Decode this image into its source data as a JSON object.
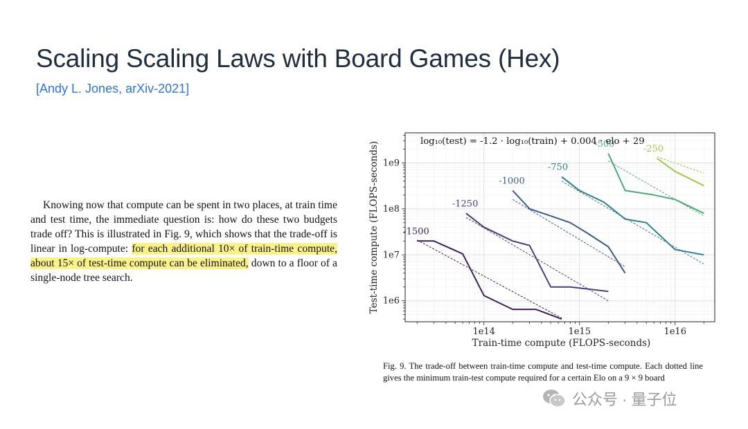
{
  "slide": {
    "title": "Scaling Scaling Laws with Board Games (Hex)",
    "subtitle": "[Andy L. Jones, arXiv-2021]"
  },
  "body": {
    "before": "Knowing now that compute can be spent in two places, at train time and test time, the immediate question is: how do these two budgets trade off? This is illustrated in Fig. 9, which shows that the trade-off is linear in log-compute: ",
    "highlight": "for each additional 10× of train-time compute, about 15× of test-time compute can be eliminated,",
    "after": " down to a floor of a single-node tree search."
  },
  "caption": "Fig. 9.  The trade-off between train-time compute and test-time compute. Each dotted line gives the minimum train-test compute required for a certain Elo on a 9 × 9 board",
  "watermark": {
    "text": "公众号 · 量子位",
    "icon": "wechat-icon"
  },
  "chart_data": {
    "type": "line",
    "log_x": true,
    "log_y": true,
    "xlabel": "Train-time compute (FLOPS-seconds)",
    "ylabel": "Test-time compute (FLOPS-seconds)",
    "xlim": [
      15000000000000.0,
      2.6e+16
    ],
    "ylim": [
      350000.0,
      4500000000.0
    ],
    "x_ticks": [
      100000000000000.0,
      1000000000000000.0,
      1e+16
    ],
    "x_tick_labels": [
      "1e14",
      "1e15",
      "1e16"
    ],
    "y_ticks": [
      1000000.0,
      10000000.0,
      100000000.0,
      1000000000.0
    ],
    "y_tick_labels": [
      "1e6",
      "1e7",
      "1e8",
      "1e9"
    ],
    "grid": true,
    "annotation": "log₁₀(test) = -1.2 · log₁₀(train) + 0.004 · elo + 29",
    "series": [
      {
        "name": "-1500",
        "color": "#3d1f52",
        "x": [
          20000000000000.0,
          30000000000000.0,
          60000000000000.0,
          100000000000000.0,
          200000000000000.0,
          350000000000000.0,
          650000000000000.0
        ],
        "y": [
          20000000.0,
          20000000.0,
          10500000.0,
          1300000.0,
          650000.0,
          650000.0,
          400000.0
        ],
        "fit_x": [
          20000000000000.0,
          650000000000000.0
        ],
        "fit_y": [
          21000000.0,
          420000.0
        ]
      },
      {
        "name": "-1250",
        "color": "#4d3c78",
        "x": [
          65000000000000.0,
          100000000000000.0,
          200000000000000.0,
          300000000000000.0,
          500000000000000.0,
          800000000000000.0,
          2000000000000000.0
        ],
        "y": [
          80000000.0,
          40000000.0,
          20000000.0,
          16000000.0,
          2000000.0,
          2000000.0,
          1600000.0
        ],
        "fit_x": [
          65000000000000.0,
          2000000000000000.0
        ],
        "fit_y": [
          65000000.0,
          1000000.0
        ]
      },
      {
        "name": "-1000",
        "color": "#3a5a87",
        "x": [
          200000000000000.0,
          300000000000000.0,
          500000000000000.0,
          800000000000000.0,
          1200000000000000.0,
          2000000000000000.0,
          3000000000000000.0
        ],
        "y": [
          250000000.0,
          100000000.0,
          70000000.0,
          50000000.0,
          30000000.0,
          15000000.0,
          4000000.0
        ],
        "fit_x": [
          200000000000000.0,
          3000000000000000.0
        ],
        "fit_y": [
          160000000.0,
          5500000.0
        ]
      },
      {
        "name": "-750",
        "color": "#2f7e88",
        "x": [
          650000000000000.0,
          1000000000000000.0,
          1800000000000000.0,
          3000000000000000.0,
          5000000000000000.0,
          1e+16,
          2e+16
        ],
        "y": [
          500000000.0,
          250000000.0,
          140000000.0,
          60000000.0,
          50000000.0,
          13000000.0,
          10000000.0
        ],
        "fit_x": [
          650000000000000.0,
          2e+16
        ],
        "fit_y": [
          400000000.0,
          6300000.0
        ]
      },
      {
        "name": "-500",
        "color": "#4fa87a",
        "x": [
          2000000000000000.0,
          3000000000000000.0,
          6000000000000000.0,
          1e+16,
          2e+16
        ],
        "y": [
          1600000000.0,
          250000000.0,
          200000000.0,
          160000000.0,
          80000000.0
        ],
        "fit_x": [
          2000000000000000.0,
          2e+16
        ],
        "fit_y": [
          1100000000.0,
          70000000.0
        ]
      },
      {
        "name": "-250",
        "color": "#9dc84a",
        "x": [
          6500000000000000.0,
          1e+16,
          2e+16
        ],
        "y": [
          1250000000.0,
          650000000.0,
          320000000.0
        ],
        "fit_x": [
          6500000000000000.0,
          2e+16
        ],
        "fit_y": [
          1350000000.0,
          600000000.0
        ]
      }
    ]
  }
}
